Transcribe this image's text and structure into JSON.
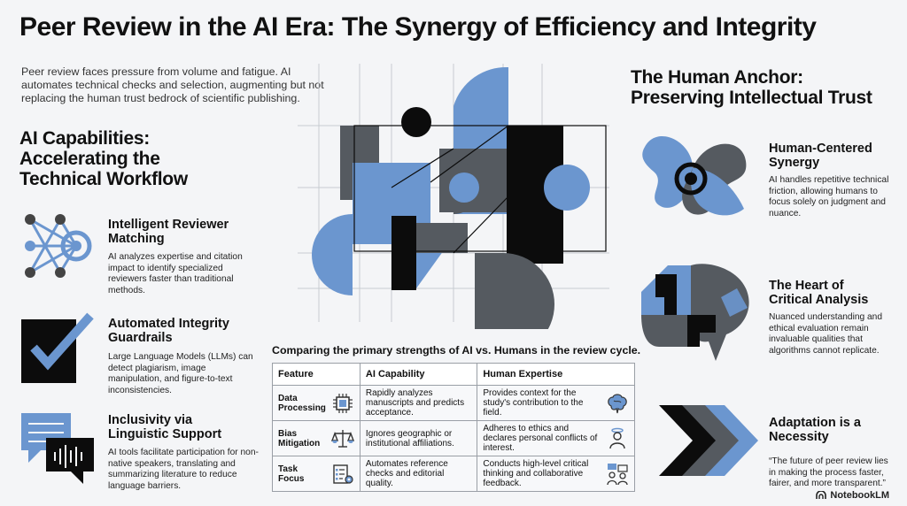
{
  "title": "Peer Review in the AI Era: The Synergy of Efficiency and Integrity",
  "intro": "Peer review faces pressure from volume and fatigue. AI automates technical checks and selection, augmenting but not replacing the human trust bedrock of scientific publishing.",
  "left": {
    "heading_line1": "AI Capabilities:",
    "heading_line2": "Accelerating the",
    "heading_line3": "Technical Workflow",
    "items": [
      {
        "title_line1": "Intelligent Reviewer",
        "title_line2": "Matching",
        "desc": "AI analyzes expertise and citation impact to identify specialized reviewers faster than traditional methods.",
        "icon": "network-target-icon"
      },
      {
        "title_line1": "Automated Integrity",
        "title_line2": "Guardrails",
        "desc": "Large Language Models (LLMs) can detect plagiarism, image manipulation, and figure-to-text inconsistencies.",
        "icon": "checkmark-icon"
      },
      {
        "title_line1": "Inclusivity via",
        "title_line2": "Linguistic Support",
        "desc": "AI tools facilitate participation for non-native speakers, translating and summarizing literature to reduce language barriers.",
        "icon": "speech-bubbles-icon"
      }
    ]
  },
  "right": {
    "heading_line1": "The Human Anchor:",
    "heading_line2": "Preserving Intellectual Trust",
    "items": [
      {
        "title_line1": "Human-Centered",
        "title_line2": "Synergy",
        "desc": "AI handles repetitive technical friction, allowing humans to focus solely on judgment and nuance.",
        "icon": "interlocking-shapes-icon"
      },
      {
        "title_line1": "The Heart of",
        "title_line2": "Critical Analysis",
        "desc": "Nuanced understanding and ethical evaluation remain invaluable qualities that algorithms cannot replicate.",
        "icon": "brain-icon"
      },
      {
        "title_line1": "Adaptation is a",
        "title_line2": "Necessity",
        "desc": "“The future of peer review lies in making the process faster, fairer, and more transparent.”",
        "icon": "chevrons-icon"
      }
    ]
  },
  "comparison": {
    "title": "Comparing the primary strengths of AI vs. Humans in the review cycle.",
    "headers": [
      "Feature",
      "AI Capability",
      "Human Expertise"
    ],
    "rows": [
      {
        "feature": "Data Processing",
        "ai": "Rapidly analyzes manuscripts and predicts acceptance.",
        "human": "Provides context for the study's contribution to the field.",
        "ai_icon": "chip-icon",
        "human_icon": "brain-icon"
      },
      {
        "feature": "Bias Mitigation",
        "ai": "Ignores geographic or institutional affiliations.",
        "human": "Adheres to ethics and declares personal conflicts of interest.",
        "ai_icon": "scales-icon",
        "human_icon": "person-halo-icon"
      },
      {
        "feature": "Task Focus",
        "ai": "Automates reference checks and editorial quality.",
        "human": "Conducts high-level critical thinking and collaborative feedback.",
        "ai_icon": "checklist-gear-icon",
        "human_icon": "people-chat-icon"
      }
    ]
  },
  "footer": "NotebookLM",
  "colors": {
    "accent_blue": "#6b96cf",
    "dark_gray": "#555a60",
    "black": "#0c0c0c"
  }
}
